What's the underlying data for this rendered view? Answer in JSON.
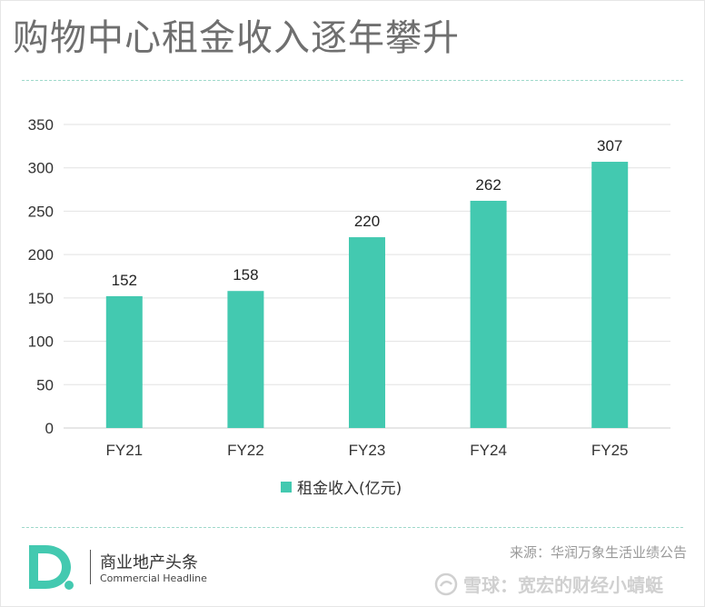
{
  "title": "购物中心租金收入逐年攀升",
  "chart_data": {
    "type": "bar",
    "title": "购物中心租金收入逐年攀升",
    "categories": [
      "FY21",
      "FY22",
      "FY23",
      "FY24",
      "FY25"
    ],
    "series": [
      {
        "name": "租金收入(亿元)",
        "values": [
          152,
          158,
          220,
          262,
          307
        ],
        "color": "#43c9b0"
      }
    ],
    "ylim": [
      0,
      350
    ],
    "yticks": [
      0,
      50,
      100,
      150,
      200,
      250,
      300,
      350
    ],
    "grid": true,
    "legend_position": "bottom",
    "xlabel": "",
    "ylabel": ""
  },
  "legend_label": "租金收入(亿元)",
  "brand": {
    "name_cn": "商业地产头条",
    "name_en": "Commercial Headline",
    "logo_letter": "D"
  },
  "source": "来源：华润万象生活业绩公告",
  "watermark": "雪球：宽宏的财经小蜻蜓",
  "colors": {
    "accent": "#43c9b0",
    "grid": "#e2e2e2",
    "title": "#6f6f6f"
  }
}
